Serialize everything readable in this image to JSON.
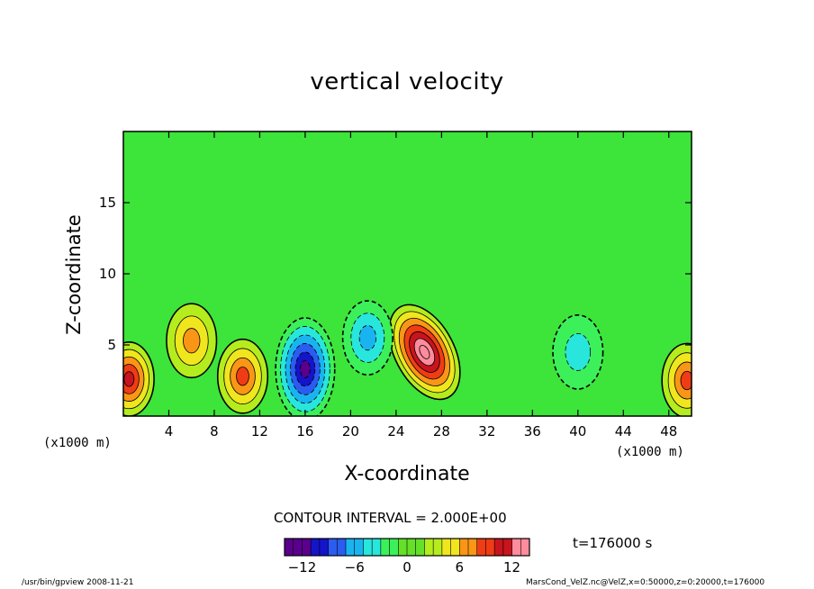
{
  "chart_data": {
    "type": "heatmap",
    "title": "vertical velocity",
    "xlabel": "X-coordinate",
    "ylabel": "Z-coordinate",
    "x_unit_label": "(x1000 m)",
    "y_unit_label": "(x1000 m)",
    "xlim": [
      0,
      50
    ],
    "ylim": [
      0,
      20
    ],
    "x_ticks": [
      4,
      8,
      12,
      16,
      20,
      24,
      28,
      32,
      36,
      40,
      44,
      48
    ],
    "y_ticks": [
      5,
      10,
      15
    ],
    "grid": false,
    "contour_interval_text": "CONTOUR INTERVAL = 2.000E+00",
    "time_text": "t=176000 s",
    "colorbar": {
      "range": [
        -14,
        14
      ],
      "ticks": [
        -12,
        -6,
        0,
        6,
        12
      ],
      "colors": [
        "#5a008c",
        "#1414c8",
        "#2a5cf0",
        "#19b4f0",
        "#28e6dc",
        "#3cf05a",
        "#64e028",
        "#b4ec1e",
        "#f0e61e",
        "#fa9616",
        "#f03c14",
        "#c8141e",
        "#ff8c9c"
      ]
    },
    "features": [
      {
        "label": "updraft core",
        "x": 26.5,
        "z": 4.5,
        "w": 13
      },
      {
        "label": "downdraft core",
        "x": 16,
        "z": 3.3,
        "w": -11
      },
      {
        "label": "updraft",
        "x": 10.5,
        "z": 2.8,
        "w": 7
      },
      {
        "label": "updraft",
        "x": 0.5,
        "z": 2.6,
        "w": 9
      },
      {
        "label": "updraft",
        "x": 6,
        "z": 5.3,
        "w": 6
      },
      {
        "label": "updraft",
        "x": 49.6,
        "z": 2.5,
        "w": 7
      },
      {
        "label": "downdraft",
        "x": 21.5,
        "z": 5.5,
        "w": -5
      },
      {
        "label": "downdraft",
        "x": 40,
        "z": 4.5,
        "w": -4
      }
    ]
  },
  "footer": {
    "left": "/usr/bin/gpview  2008-11-21",
    "right": "MarsCond_VelZ.nc@VelZ,x=0:50000,z=0:20000,t=176000"
  }
}
